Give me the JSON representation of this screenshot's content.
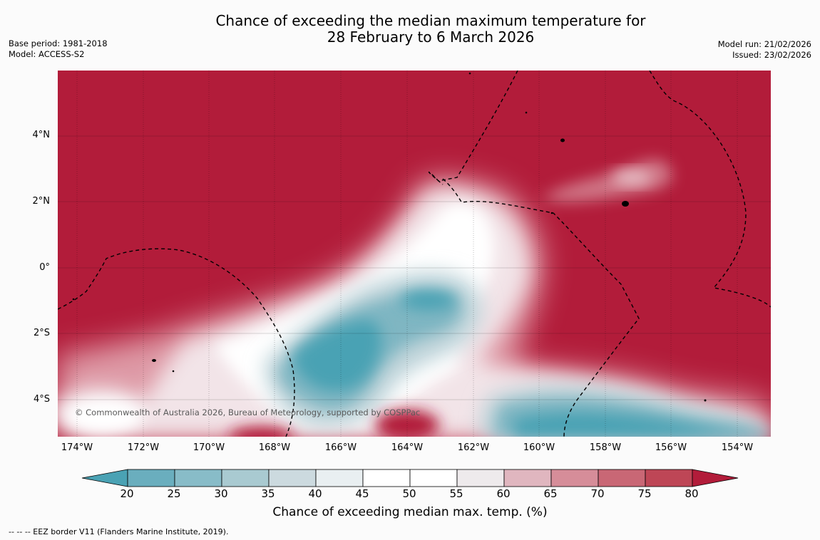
{
  "title": {
    "line1": "Chance of exceeding the median maximum temperature for",
    "line2": "28 February to 6 March 2026"
  },
  "meta_left": {
    "base_period": "Base period: 1981-2018",
    "model": "Model: ACCESS-S2"
  },
  "meta_right": {
    "model_run": "Model run: 21/02/2026",
    "issued": "Issued: 23/02/2026"
  },
  "map": {
    "lat_labels": [
      "4°N",
      "2°N",
      "0°",
      "2°S",
      "4°S"
    ],
    "lon_labels": [
      "174°W",
      "172°W",
      "170°W",
      "168°W",
      "166°W",
      "164°W",
      "162°W",
      "160°W",
      "158°W",
      "156°W",
      "154°W"
    ],
    "copyright": "© Commonwealth of Australia 2026, Bureau of Meteorology, supported by COSPPac",
    "colors": {
      "very_warm": "#b21c3a",
      "cool_dark": "#4aa2b4"
    }
  },
  "colorbar": {
    "ticks": [
      "20",
      "25",
      "30",
      "35",
      "40",
      "45",
      "50",
      "55",
      "60",
      "65",
      "70",
      "75",
      "80"
    ],
    "colors": [
      "#4aa2b4",
      "#6aaebe",
      "#88bcc8",
      "#a9cad1",
      "#ccdadf",
      "#e9eff1",
      "#ffffff",
      "#ffffff",
      "#eeeaec",
      "#e0b6bf",
      "#d68d99",
      "#c96775",
      "#be4656",
      "#b21c3a"
    ],
    "label": "Chance of exceeding median max. temp. (%)"
  },
  "legend_note": "--  --  -- EEZ border V11 (Flanders Marine Institute, 2019)."
}
